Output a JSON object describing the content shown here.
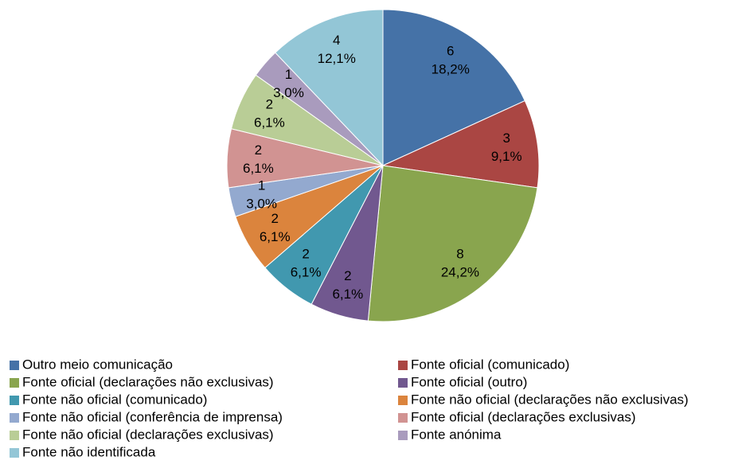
{
  "chart_data": {
    "type": "pie",
    "categories": [
      "Outro meio comunicação",
      "Fonte oficial (comunicado)",
      "Fonte oficial (declarações não exclusivas)",
      "Fonte oficial (outro)",
      "Fonte não oficial (comunicado)",
      "Fonte não oficial (declarações não exclusivas)",
      "Fonte não oficial (conferência de imprensa)",
      "Fonte oficial (declarações exclusivas)",
      "Fonte não oficial (declarações exclusivas)",
      "Fonte anónima",
      "Fonte não identificada"
    ],
    "values": [
      6,
      3,
      8,
      2,
      2,
      2,
      1,
      2,
      2,
      1,
      4
    ],
    "value_labels": [
      "18,2%",
      "9,1%",
      "24,2%",
      "6,1%",
      "6,1%",
      "6,1%",
      "3,0%",
      "6,1%",
      "6,1%",
      "3,0%",
      "12,1%"
    ],
    "colors": [
      "#4572a7",
      "#aa4643",
      "#89a54e",
      "#71588f",
      "#4198af",
      "#db843d",
      "#93a9cf",
      "#d19392",
      "#b9cd96",
      "#a99bbd",
      "#93c6d6"
    ],
    "legend": "bottom"
  }
}
